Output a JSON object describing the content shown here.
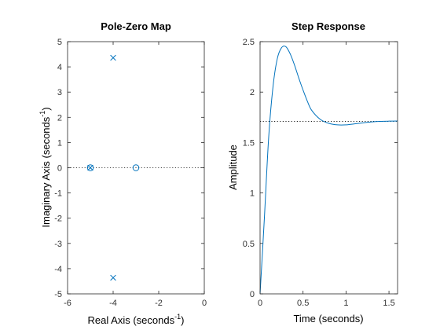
{
  "figure": {
    "background": "#ffffff",
    "line_color": "#0072bd",
    "axis_color": "#262626",
    "ref_line_color": "#000000"
  },
  "chart_data": [
    {
      "type": "scatter",
      "title": "Pole-Zero Map",
      "xlabel": {
        "text": "Real Axis (seconds",
        "sup": "-1",
        "tail": ")"
      },
      "ylabel": {
        "text": "Imaginary Axis (seconds",
        "sup": "-1",
        "tail": ")"
      },
      "xlim": [
        -6,
        0
      ],
      "ylim": [
        -5,
        5
      ],
      "xticks": [
        -6,
        -4,
        -2,
        0
      ],
      "yticks": [
        -5,
        -4,
        -3,
        -2,
        -1,
        0,
        1,
        2,
        3,
        4,
        5
      ],
      "box": true,
      "grid": false,
      "reference_line": {
        "y": 0,
        "style": "dotted"
      },
      "series": [
        {
          "marker": "x",
          "points": [
            [
              -4,
              4.36
            ],
            [
              -4,
              -4.36
            ],
            [
              -5,
              0
            ]
          ]
        },
        {
          "marker": "o",
          "points": [
            [
              -5,
              0
            ],
            [
              -3,
              0
            ]
          ]
        }
      ]
    },
    {
      "type": "line",
      "title": "Step Response",
      "xlabel": {
        "text": "Time (seconds)"
      },
      "ylabel": {
        "text": "Amplitude"
      },
      "xlim": [
        0,
        1.6
      ],
      "ylim": [
        0,
        2.5
      ],
      "xticks": [
        0,
        0.5,
        1,
        1.5
      ],
      "xtick_labels": [
        "0",
        "0.5",
        "1",
        "1.5"
      ],
      "yticks": [
        0,
        0.5,
        1,
        1.5,
        2,
        2.5
      ],
      "ytick_labels": [
        "0",
        "0.5",
        "1",
        "1.5",
        "2",
        "2.5"
      ],
      "box": true,
      "grid": false,
      "reference_line": {
        "y": 1.71,
        "style": "dotted"
      },
      "series": [
        {
          "x": [
            0,
            0.05,
            0.1,
            0.15,
            0.2,
            0.25,
            0.3,
            0.35,
            0.4,
            0.45,
            0.5,
            0.55,
            0.6,
            0.7,
            0.8,
            0.9,
            1.0,
            1.1,
            1.2,
            1.3,
            1.4,
            1.5,
            1.6
          ],
          "y": [
            0,
            0.75,
            1.55,
            2.05,
            2.33,
            2.44,
            2.45,
            2.38,
            2.27,
            2.14,
            2.02,
            1.91,
            1.82,
            1.73,
            1.69,
            1.675,
            1.675,
            1.685,
            1.695,
            1.705,
            1.71,
            1.712,
            1.713
          ]
        }
      ]
    }
  ]
}
